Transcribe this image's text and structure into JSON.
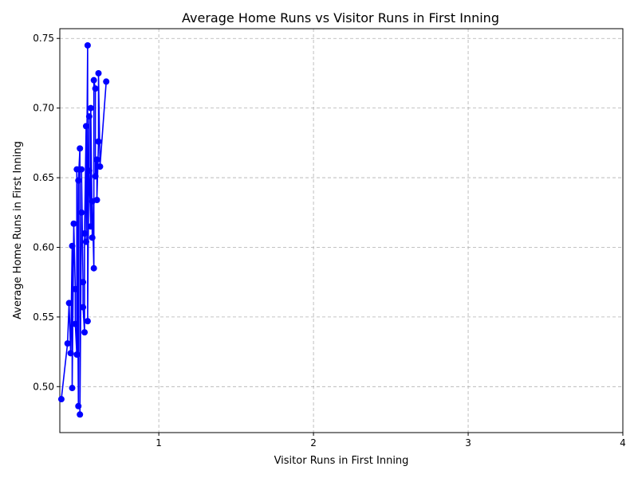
{
  "chart_data": {
    "type": "line",
    "title": "Average Home Runs vs Visitor Runs in First Inning",
    "xlabel": "Visitor Runs in First Inning",
    "ylabel": "Average Home Runs in First Inning",
    "xlim": [
      0.36,
      4.0
    ],
    "ylim": [
      0.467,
      0.757
    ],
    "xticks": [
      1,
      2,
      3,
      4
    ],
    "yticks": [
      0.5,
      0.55,
      0.6,
      0.65,
      0.7,
      0.75
    ],
    "ytick_labels": [
      "0.50",
      "0.55",
      "0.60",
      "0.65",
      "0.70",
      "0.75"
    ],
    "grid": true,
    "color": "#0000ff",
    "series": [
      {
        "x": [
          0.37,
          0.41,
          0.42,
          0.43,
          0.44,
          0.44,
          0.45,
          0.46,
          0.46,
          0.47,
          0.47,
          0.48,
          0.48,
          0.49,
          0.49,
          0.5,
          0.5,
          0.51,
          0.51,
          0.52,
          0.52,
          0.53,
          0.53,
          0.54,
          0.54,
          0.55,
          0.55,
          0.56,
          0.56,
          0.57,
          0.57,
          0.58,
          0.58,
          0.59,
          0.59,
          0.6,
          0.6,
          0.61,
          0.61,
          0.62,
          0.66
        ],
        "y": [
          0.491,
          0.531,
          0.56,
          0.524,
          0.601,
          0.499,
          0.617,
          0.57,
          0.545,
          0.523,
          0.656,
          0.486,
          0.648,
          0.671,
          0.48,
          0.625,
          0.656,
          0.575,
          0.557,
          0.539,
          0.61,
          0.687,
          0.604,
          0.745,
          0.547,
          0.694,
          0.655,
          0.615,
          0.7,
          0.607,
          0.633,
          0.585,
          0.72,
          0.714,
          0.651,
          0.663,
          0.634,
          0.676,
          0.725,
          0.658,
          0.719
        ]
      }
    ]
  }
}
